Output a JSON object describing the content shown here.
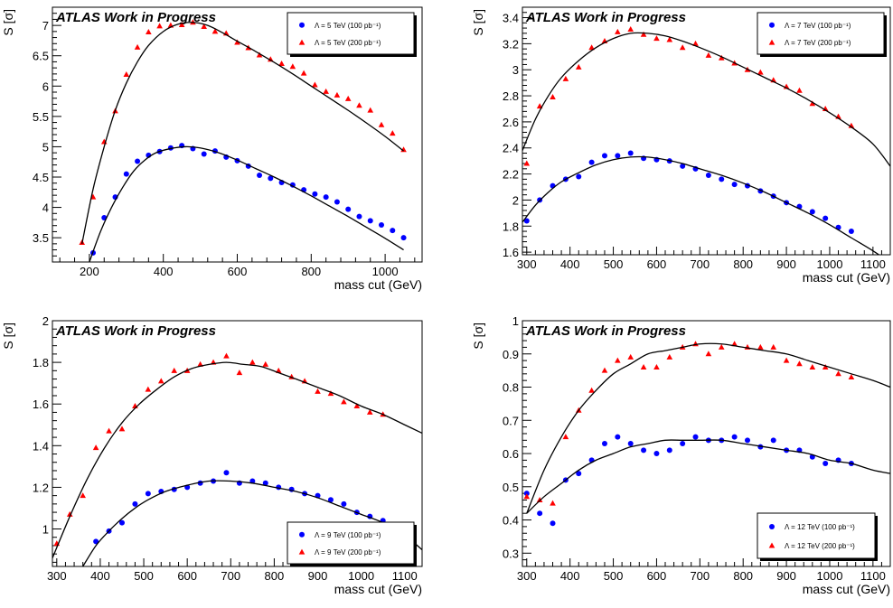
{
  "colors": {
    "series_100": "#0000ff",
    "series_200": "#ff0000",
    "fit": "#000000",
    "frame": "#000000"
  },
  "chart_data": [
    {
      "type": "scatter",
      "banner": "ATLAS Work in Progress",
      "xlabel": "mass cut (GeV)",
      "ylabel": "S [σ]",
      "xlim": [
        100,
        1100
      ],
      "ylim": [
        3.1,
        7.3
      ],
      "xticks": [
        200,
        400,
        600,
        800,
        1000
      ],
      "xticklabels": [
        "200",
        "400",
        "600",
        "800",
        "1000"
      ],
      "yticks": [
        3.5,
        4,
        4.5,
        5,
        5.5,
        6,
        6.5,
        7
      ],
      "yticklabels": [
        "3.5",
        "4",
        "4.5",
        "5",
        "5.5",
        "6",
        "6.5",
        "7"
      ],
      "legend_position": "top-right",
      "series": [
        {
          "name": "Λ = 5 TeV (100 pb⁻¹)",
          "marker": "circle",
          "color": "#0000ff",
          "x": [
            210,
            240,
            270,
            300,
            330,
            360,
            390,
            420,
            450,
            480,
            510,
            540,
            570,
            600,
            630,
            660,
            690,
            720,
            750,
            780,
            810,
            840,
            870,
            900,
            930,
            960,
            990,
            1020,
            1050
          ],
          "y": [
            3.25,
            3.83,
            4.17,
            4.55,
            4.76,
            4.86,
            4.92,
            4.98,
            5.02,
            4.97,
            4.88,
            4.93,
            4.83,
            4.77,
            4.68,
            4.53,
            4.48,
            4.41,
            4.37,
            4.29,
            4.22,
            4.17,
            4.09,
            3.97,
            3.85,
            3.78,
            3.71,
            3.62,
            3.5
          ]
        },
        {
          "name": "Λ = 5 TeV (200 pb⁻¹)",
          "marker": "triangle",
          "color": "#ff0000",
          "x": [
            180,
            210,
            240,
            270,
            300,
            330,
            360,
            390,
            420,
            450,
            480,
            510,
            540,
            570,
            600,
            630,
            660,
            690,
            720,
            750,
            780,
            810,
            840,
            870,
            900,
            930,
            960,
            990,
            1020,
            1050
          ],
          "y": [
            3.42,
            4.17,
            5.08,
            5.59,
            6.19,
            6.64,
            6.89,
            6.99,
            7.0,
            7.01,
            7.05,
            6.98,
            6.9,
            6.87,
            6.72,
            6.63,
            6.51,
            6.44,
            6.37,
            6.32,
            6.21,
            6.02,
            5.91,
            5.85,
            5.79,
            5.68,
            5.6,
            5.36,
            5.22,
            4.95
          ]
        },
        {
          "name": "fit Λ = 5 TeV (100 pb⁻¹)",
          "kind": "fit",
          "color": "#000000",
          "x": [
            200,
            230,
            260,
            290,
            320,
            350,
            380,
            420,
            460,
            500,
            550,
            600,
            650,
            700,
            750,
            800,
            850,
            900,
            950,
            1000,
            1050
          ],
          "y": [
            3.1,
            3.6,
            4.0,
            4.33,
            4.6,
            4.78,
            4.9,
            4.97,
            5.0,
            4.98,
            4.9,
            4.78,
            4.64,
            4.5,
            4.35,
            4.19,
            4.02,
            3.85,
            3.67,
            3.49,
            3.3
          ]
        },
        {
          "name": "fit Λ = 5 TeV (200 pb⁻¹)",
          "kind": "fit",
          "color": "#000000",
          "x": [
            180,
            210,
            240,
            270,
            300,
            330,
            360,
            400,
            440,
            480,
            520,
            560,
            600,
            650,
            700,
            750,
            800,
            850,
            900,
            950,
            1000,
            1050
          ],
          "y": [
            3.4,
            4.3,
            5.0,
            5.6,
            6.05,
            6.4,
            6.67,
            6.9,
            7.02,
            7.05,
            7.0,
            6.88,
            6.74,
            6.57,
            6.39,
            6.2,
            6.0,
            5.8,
            5.6,
            5.39,
            5.17,
            4.93
          ]
        }
      ]
    },
    {
      "type": "scatter",
      "banner": "ATLAS Work in Progress",
      "xlabel": "mass cut (GeV)",
      "ylabel": "S [σ]",
      "xlim": [
        290,
        1140
      ],
      "ylim": [
        1.58,
        3.48
      ],
      "xticks": [
        300,
        400,
        500,
        600,
        700,
        800,
        900,
        1000,
        1100
      ],
      "xticklabels": [
        "300",
        "400",
        "500",
        "600",
        "700",
        "800",
        "900",
        "1000",
        "1100"
      ],
      "yticks": [
        1.6,
        1.8,
        2,
        2.2,
        2.4,
        2.6,
        2.8,
        3,
        3.2,
        3.4
      ],
      "yticklabels": [
        "1.6",
        "1.8",
        "2",
        "2.2",
        "2.4",
        "2.6",
        "2.8",
        "3",
        "3.2",
        "3.4"
      ],
      "legend_position": "top-right",
      "series": [
        {
          "name": "Λ = 7 TeV (100 pb⁻¹)",
          "marker": "circle",
          "color": "#0000ff",
          "x": [
            300,
            330,
            360,
            390,
            420,
            450,
            480,
            510,
            540,
            570,
            600,
            630,
            660,
            690,
            720,
            750,
            780,
            810,
            840,
            870,
            900,
            930,
            960,
            990,
            1020,
            1050
          ],
          "y": [
            1.84,
            2.0,
            2.11,
            2.16,
            2.18,
            2.29,
            2.34,
            2.34,
            2.36,
            2.32,
            2.31,
            2.3,
            2.26,
            2.24,
            2.19,
            2.16,
            2.12,
            2.11,
            2.07,
            2.03,
            1.98,
            1.95,
            1.91,
            1.86,
            1.79,
            1.76
          ]
        },
        {
          "name": "Λ = 7 TeV (200 pb⁻¹)",
          "marker": "triangle",
          "color": "#ff0000",
          "x": [
            300,
            330,
            360,
            390,
            420,
            450,
            480,
            510,
            540,
            570,
            600,
            630,
            660,
            690,
            720,
            750,
            780,
            810,
            840,
            870,
            900,
            930,
            960,
            990,
            1020,
            1050
          ],
          "y": [
            2.28,
            2.72,
            2.79,
            2.93,
            3.02,
            3.17,
            3.22,
            3.29,
            3.31,
            3.27,
            3.24,
            3.23,
            3.17,
            3.2,
            3.11,
            3.09,
            3.05,
            3.0,
            2.98,
            2.92,
            2.87,
            2.84,
            2.74,
            2.7,
            2.64,
            2.57
          ]
        },
        {
          "name": "fit Λ = 7 TeV (100 pb⁻¹)",
          "kind": "fit",
          "color": "#000000",
          "x": [
            290,
            320,
            350,
            380,
            420,
            460,
            500,
            540,
            580,
            620,
            660,
            700,
            750,
            800,
            850,
            900,
            950,
            1000,
            1050,
            1100,
            1140
          ],
          "y": [
            1.83,
            1.96,
            2.06,
            2.14,
            2.21,
            2.27,
            2.31,
            2.33,
            2.33,
            2.31,
            2.28,
            2.24,
            2.19,
            2.13,
            2.06,
            1.98,
            1.9,
            1.81,
            1.71,
            1.61,
            1.52
          ]
        },
        {
          "name": "fit Λ = 7 TeV (200 pb⁻¹)",
          "kind": "fit",
          "color": "#000000",
          "x": [
            290,
            320,
            350,
            380,
            420,
            460,
            500,
            540,
            580,
            620,
            660,
            700,
            750,
            800,
            850,
            900,
            950,
            1000,
            1050,
            1100,
            1140
          ],
          "y": [
            2.38,
            2.62,
            2.8,
            2.94,
            3.07,
            3.17,
            3.24,
            3.28,
            3.28,
            3.26,
            3.22,
            3.17,
            3.1,
            3.02,
            2.94,
            2.86,
            2.77,
            2.67,
            2.56,
            2.43,
            2.26
          ]
        }
      ]
    },
    {
      "type": "scatter",
      "banner": "ATLAS Work in Progress",
      "xlabel": "mass cut (GeV)",
      "ylabel": "S [σ]",
      "xlim": [
        290,
        1140
      ],
      "ylim": [
        0.82,
        2.0
      ],
      "xticks": [
        300,
        400,
        500,
        600,
        700,
        800,
        900,
        1000,
        1100
      ],
      "xticklabels": [
        "300",
        "400",
        "500",
        "600",
        "700",
        "800",
        "900",
        "1000",
        "1100"
      ],
      "yticks": [
        1,
        1.2,
        1.4,
        1.6,
        1.8,
        2
      ],
      "yticklabels": [
        "1",
        "1.2",
        "1.4",
        "1.6",
        "1.8",
        "2"
      ],
      "legend_position": "bottom-right",
      "series": [
        {
          "name": "Λ = 9 TeV (100 pb⁻¹)",
          "marker": "circle",
          "color": "#0000ff",
          "x": [
            390,
            420,
            450,
            480,
            510,
            540,
            570,
            600,
            630,
            660,
            690,
            720,
            750,
            780,
            810,
            840,
            870,
            900,
            930,
            960,
            990,
            1020,
            1050
          ],
          "y": [
            0.94,
            0.99,
            1.03,
            1.12,
            1.17,
            1.18,
            1.19,
            1.2,
            1.22,
            1.23,
            1.27,
            1.22,
            1.23,
            1.22,
            1.2,
            1.19,
            1.17,
            1.16,
            1.14,
            1.12,
            1.08,
            1.06,
            1.04
          ]
        },
        {
          "name": "Λ = 9 TeV (200 pb⁻¹)",
          "marker": "triangle",
          "color": "#ff0000",
          "x": [
            300,
            330,
            360,
            390,
            420,
            450,
            480,
            510,
            540,
            570,
            600,
            630,
            660,
            690,
            720,
            750,
            780,
            810,
            840,
            870,
            900,
            930,
            960,
            990,
            1020,
            1050
          ],
          "y": [
            0.93,
            1.07,
            1.16,
            1.39,
            1.47,
            1.48,
            1.59,
            1.67,
            1.71,
            1.76,
            1.76,
            1.79,
            1.8,
            1.83,
            1.75,
            1.8,
            1.79,
            1.76,
            1.73,
            1.71,
            1.66,
            1.65,
            1.61,
            1.59,
            1.56,
            1.55
          ]
        },
        {
          "name": "fit Λ = 9 TeV (100 pb⁻¹)",
          "kind": "fit",
          "color": "#000000",
          "x": [
            360,
            390,
            420,
            450,
            480,
            510,
            550,
            600,
            650,
            700,
            750,
            800,
            850,
            900,
            950,
            1000,
            1050,
            1100,
            1140
          ],
          "y": [
            0.82,
            0.92,
            0.99,
            1.05,
            1.1,
            1.14,
            1.18,
            1.21,
            1.23,
            1.23,
            1.22,
            1.2,
            1.18,
            1.15,
            1.11,
            1.07,
            1.03,
            0.97,
            0.9
          ]
        },
        {
          "name": "fit Λ = 9 TeV (200 pb⁻¹)",
          "kind": "fit",
          "color": "#000000",
          "x": [
            290,
            330,
            370,
            410,
            450,
            490,
            530,
            570,
            610,
            650,
            690,
            730,
            770,
            810,
            850,
            900,
            950,
            1000,
            1050,
            1100,
            1140
          ],
          "y": [
            0.86,
            1.06,
            1.24,
            1.39,
            1.51,
            1.6,
            1.67,
            1.73,
            1.77,
            1.79,
            1.8,
            1.79,
            1.78,
            1.75,
            1.72,
            1.68,
            1.64,
            1.59,
            1.55,
            1.5,
            1.46
          ]
        }
      ]
    },
    {
      "type": "scatter",
      "banner": "ATLAS Work in Progress",
      "xlabel": "mass cut (GeV)",
      "ylabel": "S [σ]",
      "xlim": [
        290,
        1140
      ],
      "ylim": [
        0.26,
        1.0
      ],
      "xticks": [
        300,
        400,
        500,
        600,
        700,
        800,
        900,
        1000,
        1100
      ],
      "xticklabels": [
        "300",
        "400",
        "500",
        "600",
        "700",
        "800",
        "900",
        "1000",
        "1100"
      ],
      "yticks": [
        0.3,
        0.4,
        0.5,
        0.6,
        0.7,
        0.8,
        0.9,
        1
      ],
      "yticklabels": [
        "0.3",
        "0.4",
        "0.5",
        "0.6",
        "0.7",
        "0.8",
        "0.9",
        "1"
      ],
      "legend_position": "bottom-right",
      "series": [
        {
          "name": "Λ = 12 TeV (100 pb⁻¹)",
          "marker": "circle",
          "color": "#0000ff",
          "x": [
            300,
            330,
            360,
            390,
            420,
            450,
            480,
            510,
            540,
            570,
            600,
            630,
            660,
            690,
            720,
            750,
            780,
            810,
            840,
            870,
            900,
            930,
            960,
            990,
            1020,
            1050
          ],
          "y": [
            0.48,
            0.42,
            0.39,
            0.52,
            0.54,
            0.58,
            0.63,
            0.65,
            0.63,
            0.61,
            0.6,
            0.61,
            0.63,
            0.65,
            0.64,
            0.64,
            0.65,
            0.64,
            0.62,
            0.64,
            0.61,
            0.61,
            0.59,
            0.57,
            0.58,
            0.57
          ]
        },
        {
          "name": "Λ = 12 TeV (200 pb⁻¹)",
          "marker": "triangle",
          "color": "#ff0000",
          "x": [
            300,
            330,
            360,
            390,
            420,
            450,
            480,
            510,
            540,
            570,
            600,
            630,
            660,
            690,
            720,
            750,
            780,
            810,
            840,
            870,
            900,
            930,
            960,
            990,
            1020,
            1050
          ],
          "y": [
            0.47,
            0.46,
            0.45,
            0.65,
            0.73,
            0.79,
            0.85,
            0.88,
            0.89,
            0.86,
            0.86,
            0.89,
            0.92,
            0.93,
            0.9,
            0.92,
            0.93,
            0.92,
            0.92,
            0.92,
            0.88,
            0.87,
            0.86,
            0.86,
            0.84,
            0.83
          ]
        },
        {
          "name": "fit Λ = 12 TeV (100 pb⁻¹)",
          "kind": "fit",
          "color": "#000000",
          "x": [
            300,
            340,
            380,
            420,
            460,
            500,
            540,
            580,
            620,
            660,
            700,
            750,
            800,
            850,
            900,
            950,
            1000,
            1050,
            1100,
            1140
          ],
          "y": [
            0.42,
            0.47,
            0.51,
            0.55,
            0.58,
            0.6,
            0.62,
            0.63,
            0.64,
            0.64,
            0.64,
            0.64,
            0.63,
            0.62,
            0.61,
            0.6,
            0.58,
            0.57,
            0.55,
            0.54
          ]
        },
        {
          "name": "fit Λ = 12 TeV (200 pb⁻¹)",
          "kind": "fit",
          "color": "#000000",
          "x": [
            300,
            340,
            380,
            420,
            460,
            500,
            540,
            580,
            620,
            660,
            700,
            750,
            800,
            850,
            900,
            950,
            1000,
            1050,
            1100,
            1140
          ],
          "y": [
            0.42,
            0.55,
            0.65,
            0.73,
            0.79,
            0.84,
            0.87,
            0.9,
            0.91,
            0.92,
            0.93,
            0.93,
            0.92,
            0.91,
            0.9,
            0.88,
            0.86,
            0.84,
            0.82,
            0.8
          ]
        }
      ]
    }
  ]
}
